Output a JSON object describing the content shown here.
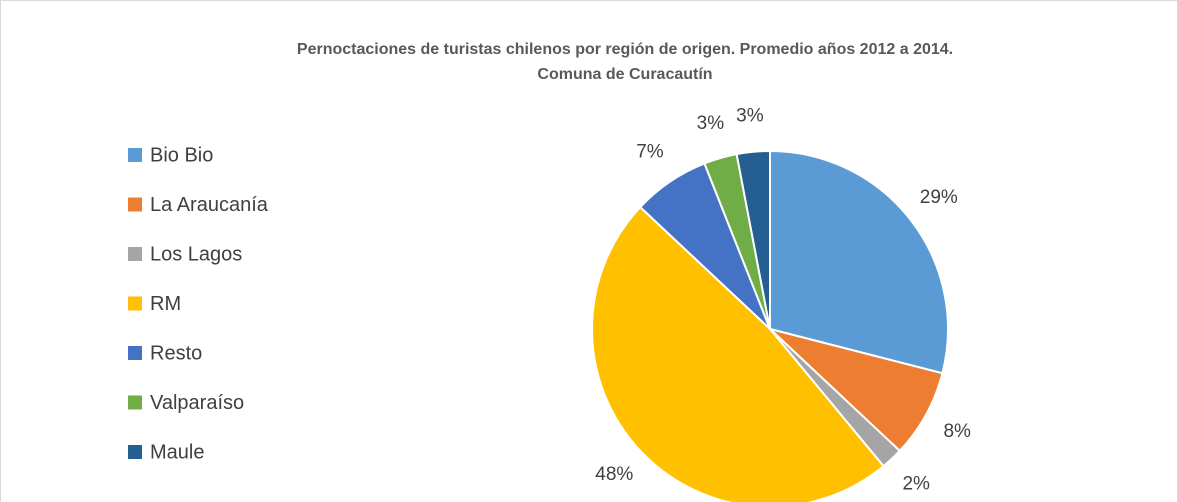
{
  "chart_data": {
    "type": "pie",
    "title": [
      "Pernoctaciones de turistas chilenos por región de origen. Promedio años 2012 a 2014.",
      "Comuna de Curacautín"
    ],
    "categories": [
      "Bio Bio",
      "La Araucanía",
      "Los Lagos",
      "RM",
      "Resto",
      "Valparaíso",
      "Maule"
    ],
    "values": [
      29,
      8,
      2,
      48,
      7,
      3,
      3
    ],
    "value_labels": [
      "29%",
      "8%",
      "2%",
      "48%",
      "7%",
      "3%",
      "3%"
    ],
    "colors": [
      "#5b9bd5",
      "#ed7d31",
      "#a5a5a5",
      "#ffc000",
      "#4472c4",
      "#70ad47",
      "#255e91"
    ],
    "legend": "left"
  }
}
